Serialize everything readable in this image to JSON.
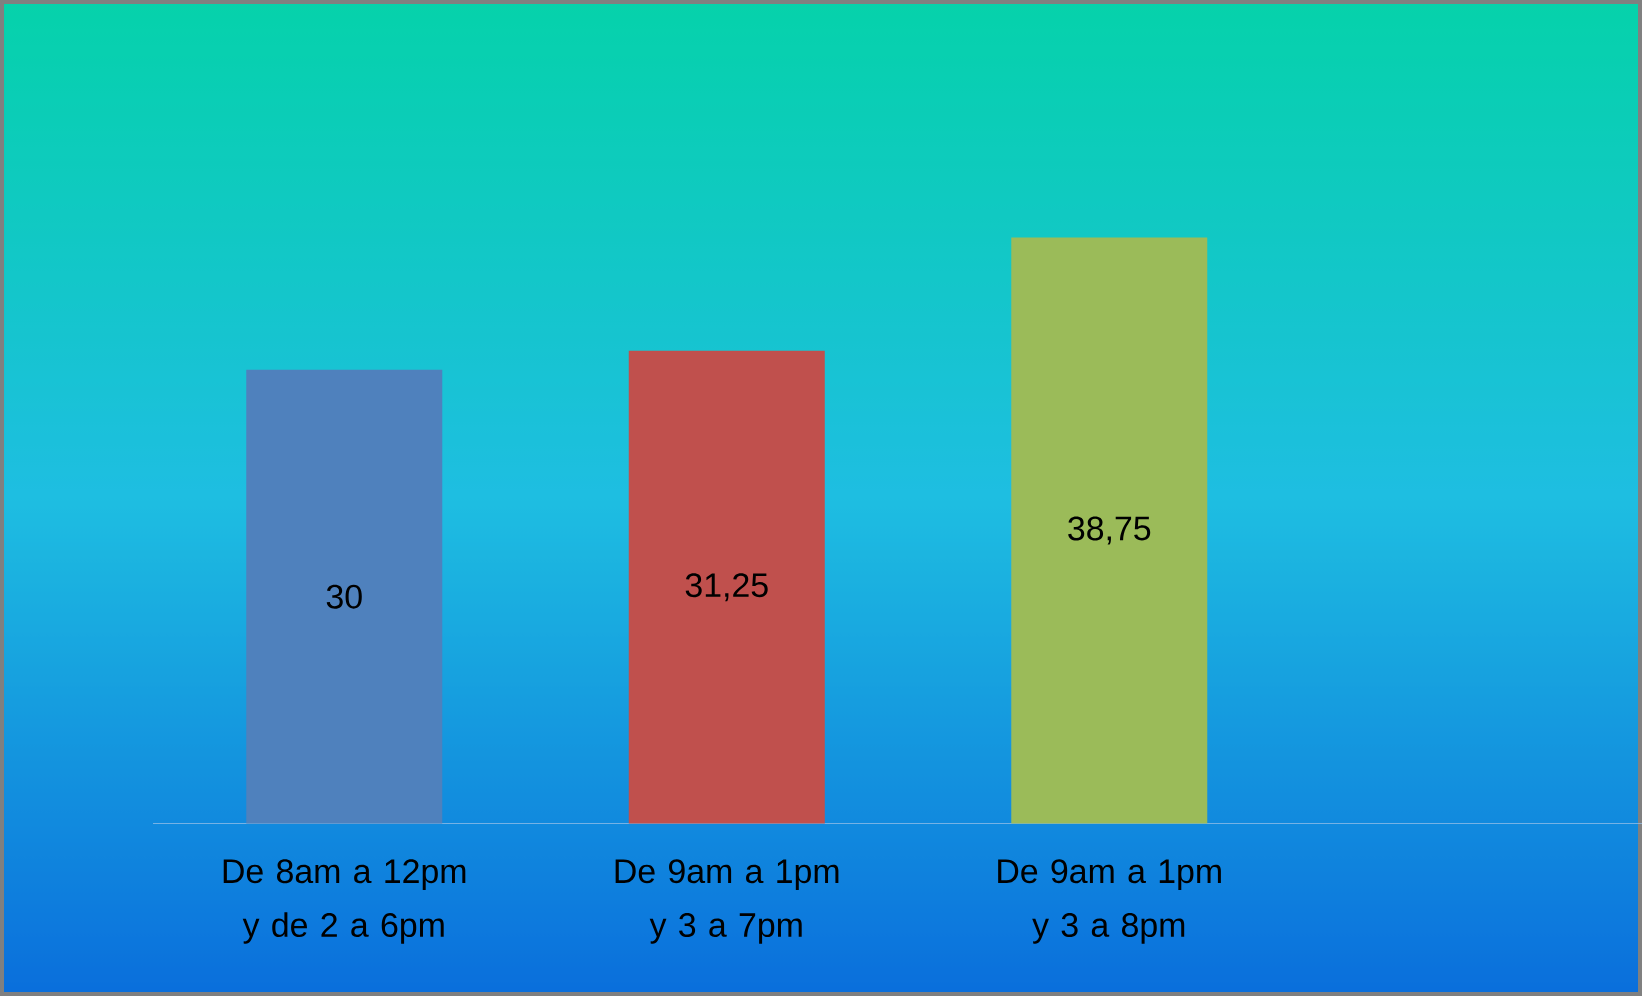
{
  "chart_data": {
    "type": "bar",
    "categories": [
      "De 8am a 12pm y de 2 a 6pm",
      "De 9am a 1pm  y 3 a 7pm",
      "De 9am a 1pm  y 3 a 8pm",
      null
    ],
    "values": [
      30,
      31.25,
      38.75,
      null
    ],
    "colors": [
      "#4f81bd",
      "#c0504d",
      "#9bbb59",
      null
    ],
    "value_labels": [
      "30",
      "31,25",
      "38,75",
      null
    ]
  }
}
